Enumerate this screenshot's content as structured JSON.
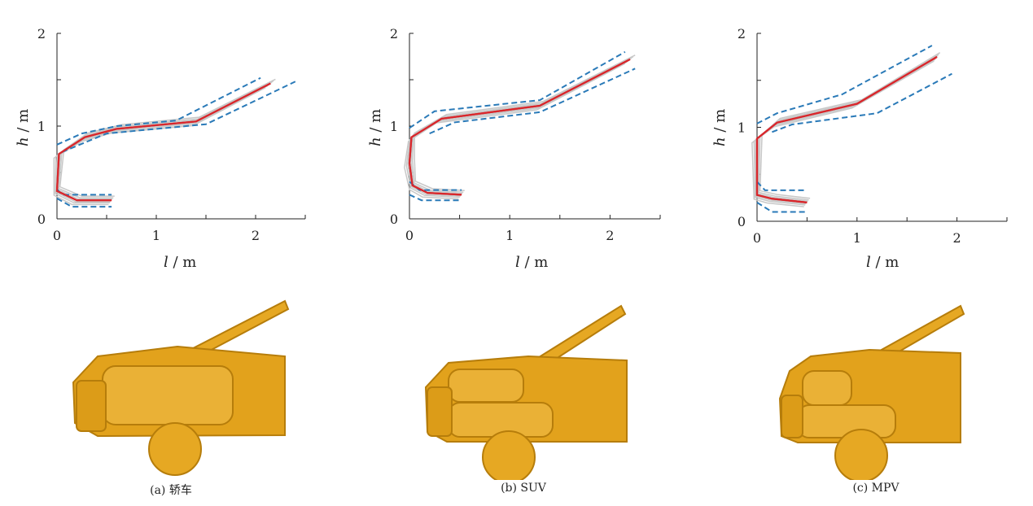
{
  "colors": {
    "mean": "#d9262b",
    "envelope": "#2a7ab8",
    "samples": "#c8c8c8",
    "axis": "#222222",
    "car_body": "#e2a21c",
    "car_shade": "#b67d0b"
  },
  "axis_text": {
    "h_var": "h",
    "l_var": "l",
    "unit": " / m"
  },
  "chart_data": [
    {
      "type": "line",
      "caption": "(a) 轿车",
      "xlabel": "l / m",
      "ylabel": "h / m",
      "xlim": [
        0,
        2.5
      ],
      "ylim": [
        0,
        2
      ],
      "xticks": [
        "0",
        "1",
        "2"
      ],
      "yticks": [
        "0",
        "1",
        "2"
      ],
      "grid": false,
      "legend": "none",
      "series": [
        {
          "role": "mean",
          "x": [
            0.55,
            0.2,
            0,
            0.02,
            0.28,
            0.6,
            1.4,
            2.15
          ],
          "y": [
            0.2,
            0.2,
            0.3,
            0.7,
            0.88,
            0.97,
            1.05,
            1.46
          ]
        },
        {
          "role": "upper-envelope",
          "x": [
            0,
            0.25,
            0.6,
            1.2,
            2.05
          ],
          "y": [
            0.8,
            0.92,
            1.0,
            1.06,
            1.52
          ]
        },
        {
          "role": "lower-envelope",
          "x": [
            0.05,
            0.5,
            1.5,
            2.4
          ],
          "y": [
            0.72,
            0.92,
            1.02,
            1.48
          ]
        },
        {
          "role": "upper-envelope",
          "x": [
            0,
            0.05,
            0.55
          ],
          "y": [
            0.32,
            0.26,
            0.26
          ]
        },
        {
          "role": "lower-envelope",
          "x": [
            0,
            0.15,
            0.55
          ],
          "y": [
            0.22,
            0.13,
            0.13
          ]
        }
      ]
    },
    {
      "type": "line",
      "caption": "(b) SUV",
      "xlabel": "l / m",
      "ylabel": "h / m",
      "xlim": [
        0,
        2.5
      ],
      "ylim": [
        0,
        2
      ],
      "xticks": [
        "0",
        "1",
        "2"
      ],
      "yticks": [
        "0",
        "1",
        "2"
      ],
      "grid": false,
      "legend": "none",
      "series": [
        {
          "role": "mean",
          "x": [
            0.52,
            0.18,
            0.03,
            0,
            0.02,
            0.32,
            1.3,
            2.2
          ],
          "y": [
            0.26,
            0.28,
            0.36,
            0.6,
            0.88,
            1.08,
            1.22,
            1.72
          ]
        },
        {
          "role": "upper-envelope",
          "x": [
            0,
            0.25,
            1.3,
            2.15
          ],
          "y": [
            0.98,
            1.16,
            1.28,
            1.8
          ]
        },
        {
          "role": "lower-envelope",
          "x": [
            0.2,
            0.45,
            1.3,
            2.25
          ],
          "y": [
            0.92,
            1.04,
            1.15,
            1.62
          ]
        },
        {
          "role": "upper-envelope",
          "x": [
            0,
            0.1,
            0.52
          ],
          "y": [
            0.4,
            0.31,
            0.31
          ]
        },
        {
          "role": "lower-envelope",
          "x": [
            0,
            0.12,
            0.52
          ],
          "y": [
            0.26,
            0.2,
            0.2
          ]
        }
      ]
    },
    {
      "type": "line",
      "caption": "(c) MPV",
      "xlabel": "l / m",
      "ylabel": "h / m",
      "xlim": [
        0,
        2.5
      ],
      "ylim": [
        0,
        2
      ],
      "xticks": [
        "0",
        "1",
        "2"
      ],
      "yticks": [
        "0",
        "1",
        "2"
      ],
      "grid": false,
      "legend": "none",
      "series": [
        {
          "role": "mean",
          "x": [
            0.5,
            0.15,
            0,
            0,
            0.2,
            1.0,
            1.8
          ],
          "y": [
            0.2,
            0.24,
            0.28,
            0.88,
            1.05,
            1.25,
            1.75
          ]
        },
        {
          "role": "upper-envelope",
          "x": [
            0,
            0.2,
            0.85,
            1.75
          ],
          "y": [
            1.04,
            1.15,
            1.35,
            1.87
          ]
        },
        {
          "role": "lower-envelope",
          "x": [
            0.15,
            0.35,
            1.2,
            1.95
          ],
          "y": [
            0.95,
            1.03,
            1.15,
            1.57
          ]
        },
        {
          "role": "upper-envelope",
          "x": [
            0,
            0.08,
            0.5
          ],
          "y": [
            0.42,
            0.33,
            0.33
          ]
        },
        {
          "role": "lower-envelope",
          "x": [
            0,
            0.15,
            0.5
          ],
          "y": [
            0.2,
            0.1,
            0.1
          ]
        }
      ]
    }
  ]
}
